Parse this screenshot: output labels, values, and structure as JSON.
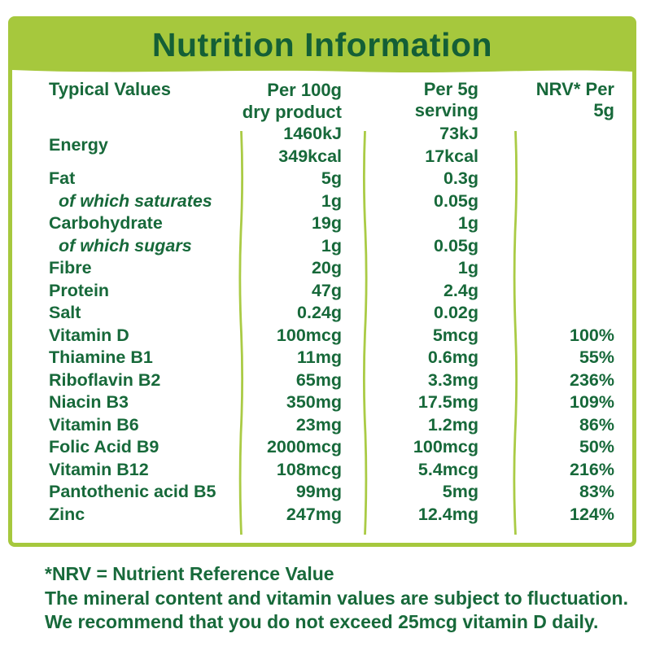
{
  "title": "Nutrition Information",
  "colors": {
    "bar_green": "#a6c83d",
    "divider_green": "#aacb45",
    "text_green": "#17693a",
    "title_green": "#145f36"
  },
  "table": {
    "headers": {
      "label": "Typical Values",
      "per100g": [
        "Per 100g",
        "dry product"
      ],
      "per5g": "Per 5g serving",
      "nrv": "NRV* Per 5g"
    },
    "rows": [
      {
        "label": "Energy",
        "per100g": [
          "1460kJ",
          "349kcal"
        ],
        "per5g": [
          "73kJ",
          "17kcal"
        ],
        "nrv": ""
      },
      {
        "label": "Fat",
        "per100g": "5g",
        "per5g": "0.3g",
        "nrv": ""
      },
      {
        "label": "of which saturates",
        "italic": true,
        "per100g": "1g",
        "per5g": "0.05g",
        "nrv": ""
      },
      {
        "label": "Carbohydrate",
        "per100g": "19g",
        "per5g": "1g",
        "nrv": ""
      },
      {
        "label": "of which sugars",
        "italic": true,
        "per100g": "1g",
        "per5g": "0.05g",
        "nrv": ""
      },
      {
        "label": "Fibre",
        "per100g": "20g",
        "per5g": "1g",
        "nrv": ""
      },
      {
        "label": "Protein",
        "per100g": "47g",
        "per5g": "2.4g",
        "nrv": ""
      },
      {
        "label": "Salt",
        "per100g": "0.24g",
        "per5g": "0.02g",
        "nrv": ""
      },
      {
        "label": "Vitamin D",
        "per100g": "100mcg",
        "per5g": "5mcg",
        "nrv": "100%"
      },
      {
        "label": "Thiamine B1",
        "per100g": "11mg",
        "per5g": "0.6mg",
        "nrv": "55%"
      },
      {
        "label": "Riboflavin B2",
        "per100g": "65mg",
        "per5g": "3.3mg",
        "nrv": "236%"
      },
      {
        "label": "Niacin B3",
        "per100g": "350mg",
        "per5g": "17.5mg",
        "nrv": "109%"
      },
      {
        "label": "Vitamin B6",
        "per100g": "23mg",
        "per5g": "1.2mg",
        "nrv": "86%"
      },
      {
        "label": "Folic Acid B9",
        "per100g": "2000mcg",
        "per5g": "100mcg",
        "nrv": "50%"
      },
      {
        "label": "Vitamin B12",
        "per100g": "108mcg",
        "per5g": "5.4mcg",
        "nrv": "216%"
      },
      {
        "label": "Pantothenic acid B5",
        "per100g": "99mg",
        "per5g": "5mg",
        "nrv": "83%"
      },
      {
        "label": "Zinc",
        "per100g": "247mg",
        "per5g": "12.4mg",
        "nrv": "124%"
      }
    ]
  },
  "footnotes": [
    "*NRV = Nutrient Reference Value",
    "The mineral content and vitamin values are subject to fluctuation.",
    "We recommend that you do not exceed 25mcg vitamin D daily."
  ]
}
